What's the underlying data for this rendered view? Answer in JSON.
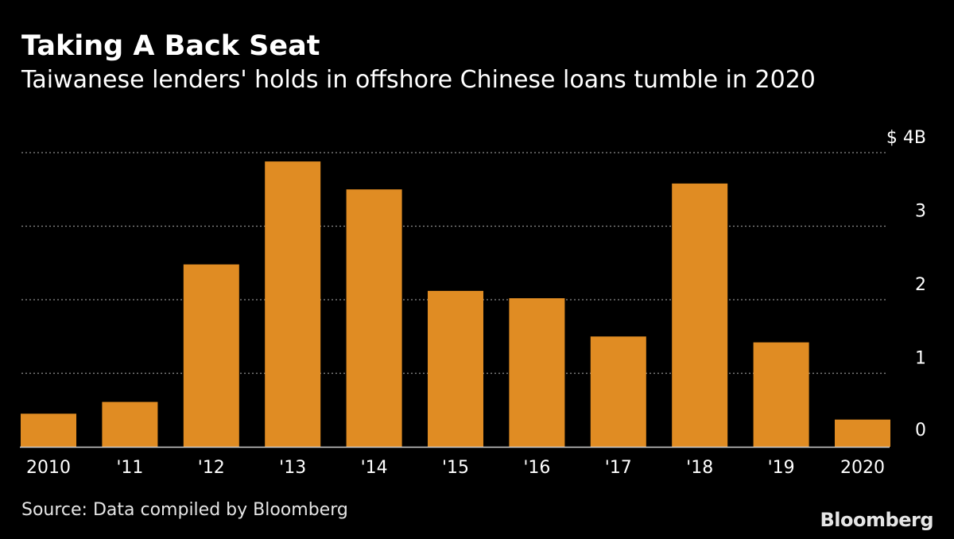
{
  "header": {
    "title": "Taking A Back Seat",
    "subtitle": "Taiwanese lenders' holds in offshore Chinese loans tumble in 2020"
  },
  "footer": {
    "source": "Source: Data compiled by Bloomberg",
    "brand": "Bloomberg"
  },
  "colors": {
    "bar": "#e08c23",
    "background": "#000000",
    "text": "#ffffff",
    "grid": "#8a8a8a"
  },
  "chart_data": {
    "type": "bar",
    "title": "Taking A Back Seat",
    "subtitle": "Taiwanese lenders' holds in offshore Chinese loans tumble in 2020",
    "categories": [
      "2010",
      "'11",
      "'12",
      "'13",
      "'14",
      "'15",
      "'16",
      "'17",
      "'18",
      "'19",
      "2020"
    ],
    "values": [
      0.45,
      0.61,
      2.48,
      3.88,
      3.5,
      2.12,
      2.02,
      1.5,
      3.58,
      1.42,
      0.37
    ],
    "xlabel": "",
    "ylabel": "",
    "ylim": [
      0,
      4
    ],
    "y_ticks": [
      {
        "value": 0,
        "label": "0"
      },
      {
        "value": 1,
        "label": "1"
      },
      {
        "value": 2,
        "label": "2"
      },
      {
        "value": 3,
        "label": "3"
      },
      {
        "value": 4,
        "label": "$ 4B"
      }
    ],
    "grid": true,
    "y_axis_position": "right",
    "legend": "none"
  }
}
